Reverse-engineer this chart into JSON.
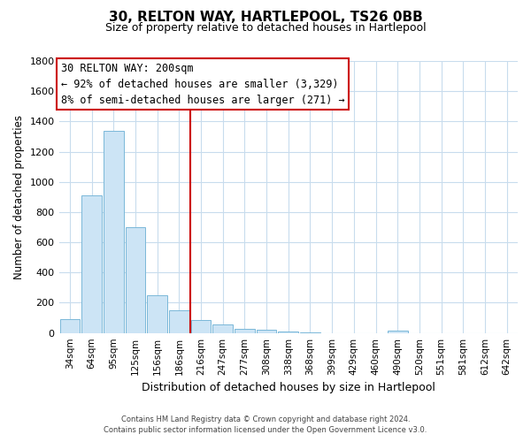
{
  "title": "30, RELTON WAY, HARTLEPOOL, TS26 0BB",
  "subtitle": "Size of property relative to detached houses in Hartlepool",
  "xlabel": "Distribution of detached houses by size in Hartlepool",
  "ylabel": "Number of detached properties",
  "bar_labels": [
    "34sqm",
    "64sqm",
    "95sqm",
    "125sqm",
    "156sqm",
    "186sqm",
    "216sqm",
    "247sqm",
    "277sqm",
    "308sqm",
    "338sqm",
    "368sqm",
    "399sqm",
    "429sqm",
    "460sqm",
    "490sqm",
    "520sqm",
    "551sqm",
    "581sqm",
    "612sqm",
    "642sqm"
  ],
  "bar_values": [
    90,
    910,
    1340,
    700,
    250,
    148,
    85,
    55,
    25,
    20,
    10,
    5,
    0,
    0,
    0,
    15,
    0,
    0,
    0,
    0,
    0
  ],
  "bar_color": "#cce4f5",
  "bar_edge_color": "#7ab8d9",
  "vline_index": 6,
  "vline_color": "#cc0000",
  "ylim": [
    0,
    1800
  ],
  "yticks": [
    0,
    200,
    400,
    600,
    800,
    1000,
    1200,
    1400,
    1600,
    1800
  ],
  "ann_title": "30 RELTON WAY: 200sqm",
  "ann_line1": "← 92% of detached houses are smaller (3,329)",
  "ann_line2": "8% of semi-detached houses are larger (271) →",
  "footer_line1": "Contains HM Land Registry data © Crown copyright and database right 2024.",
  "footer_line2": "Contains public sector information licensed under the Open Government Licence v3.0.",
  "background_color": "#ffffff",
  "grid_color": "#c8dced"
}
